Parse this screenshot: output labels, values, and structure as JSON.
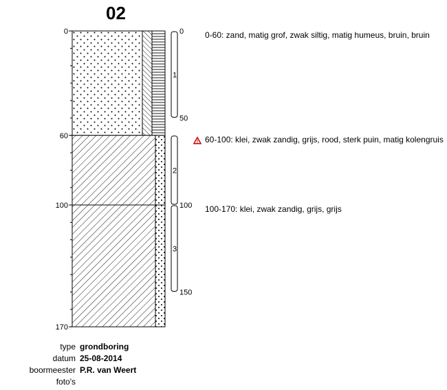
{
  "boring": {
    "id": "02",
    "depth_scale": {
      "top": 0,
      "bottom": 170,
      "ticks": [
        0,
        60,
        100,
        170
      ]
    }
  },
  "layers": [
    {
      "from": 0,
      "to": 60,
      "lithology": "zand",
      "admixture": "humeus",
      "description": "0-60: zand, matig grof, zwak siltig, matig humeus, bruin, bruin",
      "warning": false
    },
    {
      "from": 60,
      "to": 100,
      "lithology": "klei",
      "admixture": "zand",
      "description": "60-100: klei, zwak zandig, grijs, rood, sterk puin, matig kolengruis",
      "warning": true
    },
    {
      "from": 100,
      "to": 170,
      "lithology": "klei",
      "admixture": "zand",
      "description": "100-170: klei, zwak zandig, grijs, grijs",
      "warning": false
    }
  ],
  "samples": [
    {
      "number": "1",
      "from": 0,
      "to": 50,
      "top_label": "0",
      "bottom_label": "50"
    },
    {
      "number": "2",
      "from": 60,
      "to": 100,
      "top_label": "",
      "bottom_label": ""
    },
    {
      "number": "3",
      "from": 100,
      "to": 150,
      "top_label": "100",
      "bottom_label": "150"
    }
  ],
  "metadata": {
    "type_label": "type",
    "type_value": "grondboring",
    "date_label": "datum",
    "date_value": "25-08-2014",
    "driller_label": "boormeester",
    "driller_value": "P.R. van Weert",
    "photo_label": "foto's"
  },
  "icons": {
    "warning": "warning-triangle-icon"
  },
  "colors": {
    "warning": "#cc0000",
    "line": "#000000"
  }
}
